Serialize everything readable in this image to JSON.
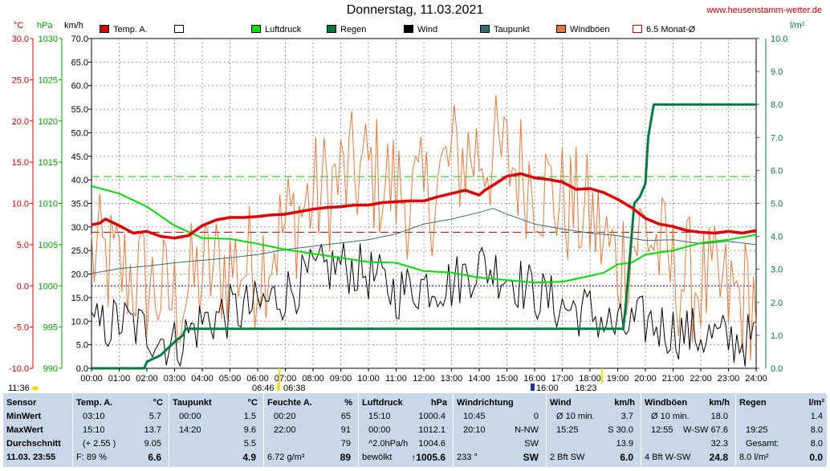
{
  "header": {
    "title": "Donnerstag, 11.03.2021",
    "site": "www.heusenstamm-wetter.de"
  },
  "units": {
    "temp": "°C",
    "pressure": "hPa",
    "speed": "km/h",
    "rain": "l/m²"
  },
  "legend": [
    {
      "label": "Temp. A.",
      "color": "#dd0000",
      "fill": true
    },
    {
      "label": "",
      "color": "#ffffff",
      "fill": true
    },
    {
      "label": "Luftdruck",
      "color": "#00dd00",
      "fill": true
    },
    {
      "label": "Regen",
      "color": "#007a3d",
      "fill": true
    },
    {
      "label": "Wind",
      "color": "#000000",
      "fill": true
    },
    {
      "label": "Taupunkt",
      "color": "#2f6f6f",
      "fill": true
    },
    {
      "label": "Windböen",
      "color": "#e87838",
      "fill": true
    },
    {
      "label": "6.5 Monat-Ø",
      "color": "#dd0000",
      "fill": false
    }
  ],
  "axes": {
    "temp_ticks": [
      "30.0",
      "25.0",
      "20.0",
      "15.0",
      "10.0",
      "5.0",
      "0.0",
      "-5.0",
      "-10.0"
    ],
    "pressure_ticks": [
      "1030",
      "1025",
      "1020",
      "1015",
      "1010",
      "1005",
      "1000",
      "995",
      "990"
    ],
    "speed_ticks": [
      "70.0",
      "65.0",
      "60.0",
      "55.0",
      "50.0",
      "45.0",
      "40.0",
      "35.0",
      "30.0",
      "25.0",
      "20.0",
      "15.0",
      "10.0",
      "5.0",
      "0.0"
    ],
    "rain_ticks": [
      "10.0",
      "9.0",
      "8.0",
      "7.0",
      "6.0",
      "5.0",
      "4.0",
      "3.0",
      "2.0",
      "1.0",
      "0.0"
    ],
    "x_ticks": [
      "00:00",
      "01:00",
      "02:00",
      "03:00",
      "04:00",
      "05:00",
      "06:00",
      "07:00",
      "08:00",
      "09:00",
      "10:00",
      "11:00",
      "12:00",
      "13:00",
      "14:00",
      "15:00",
      "16:00",
      "17:00",
      "18:00",
      "19:00",
      "20:00",
      "21:00",
      "22:00",
      "23:00",
      "24:00"
    ],
    "moon_time": "11:36",
    "sunrise": {
      "time1": "06:46",
      "time2": "06:38"
    },
    "sunset": {
      "time1": "16:00",
      "time2": "18:23"
    }
  },
  "chart_data": {
    "type": "line",
    "x_unit": "hour of day",
    "xlim": [
      0,
      24
    ],
    "ylim_temp": [
      -10,
      30
    ],
    "ylim_pressure": [
      990,
      1030
    ],
    "ylim_speed": [
      0,
      70
    ],
    "ylim_rain": [
      0,
      10
    ],
    "reference_lines": [
      {
        "axis": "temp",
        "value": 6.5,
        "color": "#dd0000"
      },
      {
        "axis": "temp",
        "value": 0.0,
        "color": "#0000cc"
      },
      {
        "axis": "pressure",
        "value": 1013.25,
        "color": "#00cc00"
      }
    ],
    "series": [
      {
        "name": "Temp. A.",
        "axis": "temp",
        "color": "#dd0000",
        "width": 3.5,
        "x": [
          0,
          0.3,
          0.5,
          1,
          1.5,
          2,
          2.5,
          3,
          3.5,
          4,
          4.5,
          5,
          5.5,
          6,
          6.5,
          7,
          7.5,
          8,
          8.5,
          9,
          9.5,
          10,
          10.5,
          11,
          11.5,
          12,
          12.5,
          13,
          13.5,
          14,
          14.2,
          14.5,
          15,
          15.5,
          16,
          16.5,
          17,
          17.5,
          18,
          18.5,
          19,
          19.5,
          20,
          20.5,
          21,
          21.5,
          22,
          22.5,
          23,
          23.5,
          24
        ],
        "y": [
          7.4,
          7.6,
          8.1,
          7.3,
          6.4,
          6.6,
          6.0,
          5.8,
          6.1,
          7.3,
          8.0,
          8.3,
          8.3,
          8.4,
          8.6,
          8.7,
          9.0,
          9.3,
          9.5,
          9.6,
          9.8,
          9.8,
          10.1,
          10.2,
          10.3,
          10.3,
          10.8,
          11.2,
          11.6,
          11.0,
          11.6,
          12.2,
          13.3,
          13.6,
          13.1,
          12.9,
          12.6,
          11.7,
          11.8,
          11.3,
          10.5,
          9.5,
          8.2,
          7.5,
          7.2,
          6.7,
          6.5,
          6.4,
          6.6,
          6.4,
          6.7
        ]
      },
      {
        "name": "Taupunkt",
        "axis": "temp",
        "color": "#2f6f6f",
        "width": 1,
        "x": [
          0,
          1,
          2,
          3,
          4,
          5,
          6,
          7,
          8,
          9,
          10,
          11,
          12,
          13,
          14,
          14.5,
          15,
          16,
          17,
          18,
          19,
          20,
          21,
          22,
          23,
          24
        ],
        "y": [
          1.5,
          2.1,
          2.4,
          2.8,
          3.1,
          3.4,
          3.8,
          4.4,
          4.8,
          5.2,
          5.6,
          6.3,
          7.5,
          8.1,
          8.9,
          9.4,
          8.7,
          7.5,
          6.9,
          6.4,
          6.1,
          5.5,
          5.6,
          5.1,
          5.4,
          5.0
        ]
      },
      {
        "name": "Luftdruck",
        "axis": "pressure",
        "color": "#00dd00",
        "width": 2,
        "x": [
          0,
          1,
          2,
          3,
          4,
          5,
          6,
          7,
          8,
          9,
          10,
          11,
          12,
          13,
          14,
          15,
          16,
          17,
          18,
          18.5,
          19,
          19.5,
          20,
          21,
          22,
          23,
          24
        ],
        "y": [
          1012.1,
          1011.2,
          1009.6,
          1007.3,
          1005.8,
          1005.7,
          1005.1,
          1004.4,
          1003.9,
          1003.4,
          1002.9,
          1002.8,
          1001.8,
          1001.6,
          1001.0,
          1000.7,
          1000.4,
          1000.5,
          1001.2,
          1001.6,
          1002.6,
          1002.8,
          1003.8,
          1004.3,
          1005.2,
          1005.6,
          1006.2
        ]
      },
      {
        "name": "Regen",
        "axis": "rain",
        "color": "#007a3d",
        "width": 3,
        "x": [
          0,
          1.9,
          2.0,
          2.5,
          3.0,
          3.3,
          3.4,
          18.8,
          19.2,
          19.3,
          19.5,
          19.6,
          19.8,
          20.0,
          20.1,
          20.3,
          24
        ],
        "y": [
          0,
          0,
          0.2,
          0.4,
          0.8,
          1.0,
          1.2,
          1.2,
          1.2,
          2.0,
          4.0,
          5.0,
          5.2,
          5.6,
          7.0,
          8.0,
          8.0
        ]
      }
    ]
  },
  "stats": {
    "sensor": {
      "title": "Sensor",
      "rows": [
        "MinWert",
        "MaxWert",
        "Durchschnitt",
        "11.03. 23:55"
      ]
    },
    "temp": {
      "title": "Temp. A.",
      "unit": "°C",
      "rows": [
        [
          "03:10",
          "5.7"
        ],
        [
          "15:10",
          "13.7"
        ],
        [
          "(+ 2.55 )",
          "9.05"
        ],
        [
          "F: 89 %",
          "6.6"
        ]
      ]
    },
    "dew": {
      "title": "Taupunkt",
      "unit": "°C",
      "rows": [
        [
          "00:00",
          "1.5"
        ],
        [
          "14:20",
          "9.6"
        ],
        [
          "",
          "5.5"
        ],
        [
          "",
          "4.9"
        ]
      ]
    },
    "humidity": {
      "title": "Feuchte A.",
      "unit": "%",
      "rows": [
        [
          "00:20",
          "65"
        ],
        [
          "22:00",
          "91"
        ],
        [
          "",
          "79"
        ],
        [
          "6.72 g/m³",
          "89"
        ]
      ]
    },
    "pressure": {
      "title": "Luftdruck",
      "unit": "hPa",
      "rows": [
        [
          "15:10",
          "1000.4"
        ],
        [
          "00:00",
          "1012.1"
        ],
        [
          "^2.0hPa/h",
          "1004.6"
        ],
        [
          "bewölkt",
          "↑1005.6"
        ]
      ]
    },
    "wind_dir": {
      "title": "Windrichtung",
      "rows": [
        [
          "10:45",
          "0"
        ],
        [
          "20:10",
          "N-NW"
        ],
        [
          "",
          "SW"
        ],
        [
          "233 °",
          "SW"
        ]
      ]
    },
    "wind": {
      "title": "Wind",
      "unit": "km/h",
      "rows": [
        [
          "Ø 10 min.",
          "3.7"
        ],
        [
          "15:25",
          "S 30.0"
        ],
        [
          "",
          "13.9"
        ],
        [
          "2 Bft SW",
          "6.0"
        ]
      ]
    },
    "gust": {
      "title": "Windböen",
      "unit": "km/h",
      "rows": [
        [
          "Ø 10 min.",
          "18.0"
        ],
        [
          "12:55",
          "W-SW 67.6"
        ],
        [
          "",
          "32.3"
        ],
        [
          "4 Bft W-SW",
          "24.8"
        ]
      ]
    },
    "rain": {
      "title": "Regen",
      "unit": "l/m²",
      "rows": [
        [
          "",
          "1.4"
        ],
        [
          "19:25",
          "8.0"
        ],
        [
          "Gesamt:",
          "8.0"
        ],
        [
          "8.0 l/m²",
          "0.0"
        ]
      ]
    }
  }
}
